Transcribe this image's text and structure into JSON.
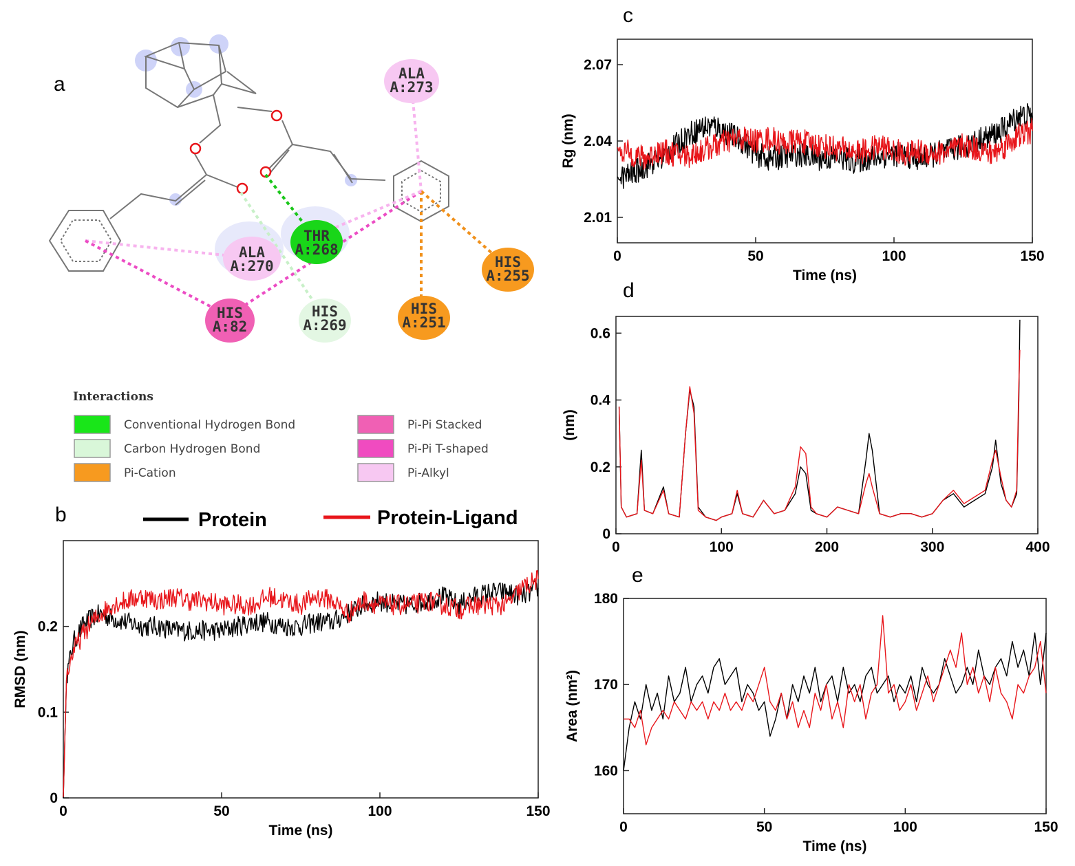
{
  "panels": {
    "a": {
      "letter": "a",
      "residues": [
        {
          "id": "ala273",
          "name": "ALA",
          "pos": "A:273",
          "type": "pi-alkyl"
        },
        {
          "id": "thr268",
          "name": "THR",
          "pos": "A:268",
          "type": "conventional-hbond"
        },
        {
          "id": "ala270",
          "name": "ALA",
          "pos": "A:270",
          "type": "pi-alkyl"
        },
        {
          "id": "his255",
          "name": "HIS",
          "pos": "A:255",
          "type": "pi-cation"
        },
        {
          "id": "his251",
          "name": "HIS",
          "pos": "A:251",
          "type": "pi-cation"
        },
        {
          "id": "his82",
          "name": "HIS",
          "pos": "A:82",
          "type": "pi-pi"
        },
        {
          "id": "his269",
          "name": "HIS",
          "pos": "A:269",
          "type": "carbon-hbond"
        }
      ],
      "legend": {
        "title": "Interactions",
        "items": [
          {
            "label": "Conventional Hydrogen Bond",
            "color": "#19e619"
          },
          {
            "label": "Carbon Hydrogen Bond",
            "color": "#d9f7d9"
          },
          {
            "label": "Pi-Cation",
            "color": "#f79a1f"
          },
          {
            "label": "Pi-Pi Stacked",
            "color": "#f060b4"
          },
          {
            "label": "Pi-Pi T-shaped",
            "color": "#f04bc0"
          },
          {
            "label": "Pi-Alkyl",
            "color": "#f7c8f2"
          }
        ]
      }
    },
    "b": {
      "letter": "b"
    },
    "c": {
      "letter": "c"
    },
    "d": {
      "letter": "d"
    },
    "e": {
      "letter": "e"
    }
  },
  "series_legend": {
    "protein": {
      "label": "Protein",
      "color": "#000000"
    },
    "complex": {
      "label": "Protein-Ligand",
      "color": "#e8161b"
    }
  },
  "chart_data": [
    {
      "id": "b",
      "type": "line",
      "xlabel": "Time (ns)",
      "ylabel": "RMSD (nm)",
      "xlim": [
        0,
        150
      ],
      "ylim": [
        0,
        0.3
      ],
      "xticks": [
        0,
        50,
        100,
        150
      ],
      "yticks": [
        0,
        0.1,
        0.2
      ],
      "series": [
        {
          "name": "Protein",
          "color": "#000000",
          "x": [
            0,
            1,
            3,
            6,
            9,
            12,
            15,
            20,
            25,
            30,
            35,
            40,
            45,
            50,
            55,
            60,
            65,
            70,
            75,
            80,
            85,
            90,
            95,
            100,
            105,
            110,
            115,
            120,
            125,
            130,
            135,
            140,
            145,
            150
          ],
          "y": [
            0.0,
            0.14,
            0.18,
            0.2,
            0.21,
            0.215,
            0.21,
            0.205,
            0.2,
            0.2,
            0.195,
            0.195,
            0.195,
            0.195,
            0.2,
            0.205,
            0.205,
            0.2,
            0.2,
            0.205,
            0.205,
            0.215,
            0.225,
            0.23,
            0.225,
            0.225,
            0.23,
            0.235,
            0.225,
            0.235,
            0.24,
            0.24,
            0.235,
            0.245
          ]
        },
        {
          "name": "Protein-Ligand",
          "color": "#e8161b",
          "x": [
            0,
            1,
            3,
            6,
            9,
            12,
            15,
            20,
            25,
            30,
            35,
            40,
            45,
            50,
            55,
            60,
            65,
            70,
            75,
            80,
            85,
            90,
            95,
            100,
            105,
            110,
            115,
            120,
            125,
            130,
            135,
            140,
            145,
            150
          ],
          "y": [
            0.0,
            0.14,
            0.17,
            0.19,
            0.205,
            0.215,
            0.225,
            0.23,
            0.235,
            0.23,
            0.235,
            0.23,
            0.23,
            0.225,
            0.225,
            0.225,
            0.235,
            0.23,
            0.225,
            0.235,
            0.23,
            0.215,
            0.23,
            0.225,
            0.225,
            0.225,
            0.23,
            0.225,
            0.22,
            0.225,
            0.225,
            0.225,
            0.245,
            0.255
          ]
        }
      ]
    },
    {
      "id": "c",
      "type": "line",
      "xlabel": "Time (ns)",
      "ylabel": "Rg (nm)",
      "xlim": [
        0,
        150
      ],
      "ylim": [
        2.0,
        2.08
      ],
      "xticks": [
        0,
        50,
        100,
        150
      ],
      "yticks": [
        2.01,
        2.04,
        2.07
      ],
      "series": [
        {
          "name": "Protein",
          "color": "#000000",
          "x": [
            0,
            5,
            10,
            15,
            20,
            25,
            30,
            35,
            40,
            45,
            50,
            55,
            60,
            65,
            70,
            75,
            80,
            85,
            90,
            95,
            100,
            105,
            110,
            115,
            120,
            125,
            130,
            135,
            140,
            145,
            150
          ],
          "y": [
            2.025,
            2.027,
            2.03,
            2.033,
            2.037,
            2.042,
            2.045,
            2.046,
            2.043,
            2.04,
            2.035,
            2.033,
            2.034,
            2.035,
            2.034,
            2.033,
            2.034,
            2.032,
            2.033,
            2.034,
            2.035,
            2.034,
            2.033,
            2.035,
            2.036,
            2.038,
            2.04,
            2.042,
            2.045,
            2.05,
            2.05
          ]
        },
        {
          "name": "Protein-Ligand",
          "color": "#e8161b",
          "x": [
            0,
            5,
            10,
            15,
            20,
            25,
            30,
            35,
            40,
            45,
            50,
            55,
            60,
            65,
            70,
            75,
            80,
            85,
            90,
            95,
            100,
            105,
            110,
            115,
            120,
            125,
            130,
            135,
            140,
            145,
            150
          ],
          "y": [
            2.037,
            2.035,
            2.033,
            2.036,
            2.035,
            2.034,
            2.036,
            2.038,
            2.04,
            2.041,
            2.04,
            2.041,
            2.039,
            2.04,
            2.039,
            2.038,
            2.037,
            2.036,
            2.036,
            2.038,
            2.036,
            2.035,
            2.036,
            2.035,
            2.036,
            2.038,
            2.037,
            2.035,
            2.038,
            2.042,
            2.044
          ]
        }
      ]
    },
    {
      "id": "d",
      "type": "line",
      "xlabel": "",
      "ylabel": "(nm)",
      "xlim": [
        0,
        400
      ],
      "ylim": [
        0,
        0.65
      ],
      "xticks": [
        0,
        100,
        200,
        300,
        400
      ],
      "yticks": [
        0,
        0.2,
        0.4,
        0.6
      ],
      "series": [
        {
          "name": "Protein",
          "color": "#000000",
          "x": [
            3,
            5,
            10,
            20,
            24,
            27,
            35,
            45,
            50,
            60,
            66,
            70,
            74,
            78,
            85,
            95,
            100,
            110,
            115,
            120,
            130,
            140,
            150,
            160,
            170,
            175,
            180,
            185,
            190,
            200,
            210,
            220,
            230,
            237,
            240,
            243,
            250,
            260,
            270,
            280,
            290,
            300,
            310,
            320,
            330,
            340,
            350,
            357,
            360,
            365,
            370,
            375,
            380,
            382,
            383
          ],
          "y": [
            0.38,
            0.08,
            0.05,
            0.06,
            0.25,
            0.07,
            0.06,
            0.14,
            0.06,
            0.05,
            0.3,
            0.43,
            0.38,
            0.08,
            0.05,
            0.04,
            0.05,
            0.06,
            0.12,
            0.06,
            0.05,
            0.1,
            0.06,
            0.07,
            0.12,
            0.2,
            0.18,
            0.07,
            0.06,
            0.05,
            0.08,
            0.07,
            0.06,
            0.22,
            0.3,
            0.25,
            0.06,
            0.05,
            0.06,
            0.06,
            0.05,
            0.06,
            0.1,
            0.12,
            0.08,
            0.1,
            0.12,
            0.2,
            0.28,
            0.15,
            0.1,
            0.08,
            0.12,
            0.4,
            0.64
          ]
        },
        {
          "name": "Protein-Ligand",
          "color": "#e8161b",
          "x": [
            3,
            5,
            10,
            20,
            24,
            27,
            35,
            45,
            50,
            60,
            66,
            70,
            74,
            78,
            85,
            95,
            100,
            110,
            115,
            120,
            130,
            140,
            150,
            160,
            170,
            175,
            180,
            185,
            190,
            200,
            210,
            220,
            230,
            237,
            240,
            243,
            250,
            260,
            270,
            280,
            290,
            300,
            310,
            320,
            330,
            340,
            350,
            357,
            360,
            365,
            370,
            375,
            380,
            382,
            383
          ],
          "y": [
            0.38,
            0.08,
            0.05,
            0.06,
            0.22,
            0.07,
            0.06,
            0.13,
            0.06,
            0.05,
            0.3,
            0.44,
            0.36,
            0.07,
            0.05,
            0.04,
            0.05,
            0.06,
            0.13,
            0.06,
            0.05,
            0.1,
            0.06,
            0.07,
            0.14,
            0.26,
            0.24,
            0.08,
            0.06,
            0.05,
            0.08,
            0.07,
            0.06,
            0.15,
            0.18,
            0.14,
            0.06,
            0.05,
            0.06,
            0.06,
            0.05,
            0.06,
            0.1,
            0.13,
            0.09,
            0.11,
            0.13,
            0.22,
            0.25,
            0.17,
            0.1,
            0.08,
            0.13,
            0.45,
            0.55
          ]
        }
      ]
    },
    {
      "id": "e",
      "type": "line",
      "xlabel": "Time (ns)",
      "ylabel": "Area (nm²)",
      "xlim": [
        0,
        150
      ],
      "ylim": [
        155,
        180
      ],
      "xticks": [
        0,
        50,
        100,
        150
      ],
      "yticks": [
        160,
        170,
        180
      ],
      "series": [
        {
          "name": "Protein",
          "color": "#000000",
          "x": [
            0,
            2,
            4,
            6,
            8,
            10,
            12,
            14,
            16,
            18,
            20,
            22,
            24,
            26,
            28,
            30,
            32,
            34,
            36,
            38,
            40,
            42,
            44,
            46,
            48,
            50,
            52,
            54,
            56,
            58,
            60,
            62,
            64,
            66,
            68,
            70,
            72,
            74,
            76,
            78,
            80,
            82,
            84,
            86,
            88,
            90,
            92,
            94,
            96,
            98,
            100,
            102,
            104,
            106,
            108,
            110,
            112,
            114,
            116,
            118,
            120,
            122,
            124,
            126,
            128,
            130,
            132,
            134,
            136,
            138,
            140,
            142,
            144,
            146,
            148,
            150
          ],
          "y": [
            160,
            165,
            168,
            166,
            170,
            167,
            169,
            166,
            171,
            168,
            169,
            172,
            168,
            170,
            171,
            169,
            172,
            173,
            170,
            171,
            172,
            168,
            170,
            169,
            167,
            168,
            164,
            166,
            169,
            166,
            170,
            168,
            171,
            169,
            172,
            168,
            170,
            171,
            168,
            172,
            169,
            170,
            168,
            171,
            172,
            169,
            170,
            171,
            168,
            170,
            169,
            171,
            168,
            172,
            170,
            169,
            170,
            173,
            171,
            169,
            170,
            172,
            170,
            174,
            171,
            170,
            172,
            173,
            171,
            175,
            172,
            174,
            171,
            176,
            170,
            176
          ]
        },
        {
          "name": "Protein-Ligand",
          "color": "#e8161b",
          "x": [
            0,
            2,
            4,
            6,
            8,
            10,
            12,
            14,
            16,
            18,
            20,
            22,
            24,
            26,
            28,
            30,
            32,
            34,
            36,
            38,
            40,
            42,
            44,
            46,
            48,
            50,
            52,
            54,
            56,
            58,
            60,
            62,
            64,
            66,
            68,
            70,
            72,
            74,
            76,
            78,
            80,
            82,
            84,
            86,
            88,
            90,
            92,
            94,
            96,
            98,
            100,
            102,
            104,
            106,
            108,
            110,
            112,
            114,
            116,
            118,
            120,
            122,
            124,
            126,
            128,
            130,
            132,
            134,
            136,
            138,
            140,
            142,
            144,
            146,
            148,
            150
          ],
          "y": [
            166,
            166,
            165,
            167,
            163,
            165,
            166,
            167,
            166,
            168,
            167,
            166,
            168,
            167,
            168,
            166,
            168,
            167,
            169,
            167,
            168,
            167,
            169,
            168,
            170,
            172,
            168,
            167,
            169,
            166,
            168,
            165,
            167,
            165,
            169,
            167,
            170,
            166,
            168,
            165,
            170,
            168,
            170,
            166,
            169,
            170,
            178,
            169,
            170,
            167,
            168,
            170,
            167,
            169,
            171,
            168,
            170,
            172,
            174,
            172,
            176,
            170,
            172,
            169,
            171,
            168,
            172,
            169,
            168,
            166,
            170,
            169,
            171,
            172,
            175,
            169
          ]
        }
      ]
    }
  ]
}
